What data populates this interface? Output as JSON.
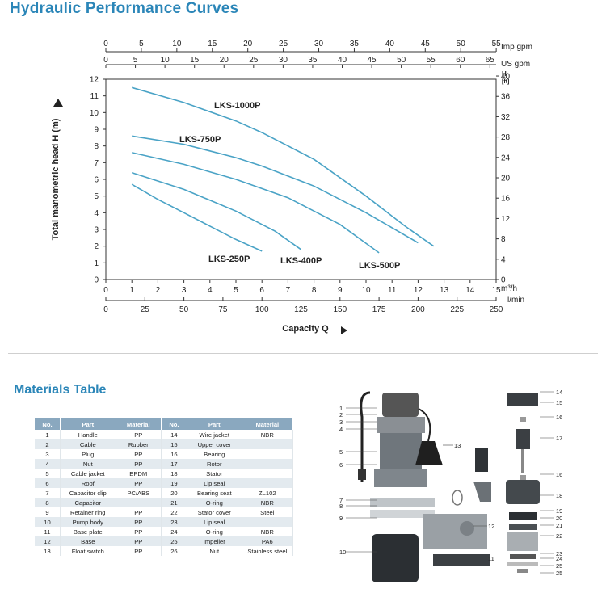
{
  "header": {
    "title": "Hydraulic Performance Curves"
  },
  "chart_data": {
    "type": "line",
    "ylabel": "Total manometric head H (m)",
    "xlabel": "Capacity Q",
    "y_axis_left": {
      "ticks": [
        "0",
        "1",
        "2",
        "3",
        "4",
        "5",
        "6",
        "7",
        "8",
        "9",
        "10",
        "11",
        "12"
      ],
      "ylim": [
        0,
        12
      ]
    },
    "y_axis_right": {
      "unit_top": "H",
      "unit_bottom": "[ft]",
      "ticks": [
        "0",
        "4",
        "8",
        "12",
        "16",
        "20",
        "24",
        "28",
        "32",
        "36",
        "40"
      ]
    },
    "x_axes": [
      {
        "unit": "Imp gpm",
        "ticks": [
          "0",
          "5",
          "10",
          "15",
          "20",
          "25",
          "30",
          "35",
          "40",
          "45",
          "50",
          "55"
        ]
      },
      {
        "unit": "US gpm",
        "ticks": [
          "0",
          "5",
          "10",
          "15",
          "20",
          "25",
          "30",
          "35",
          "40",
          "45",
          "50",
          "55",
          "60",
          "65"
        ]
      },
      {
        "unit": "m³/h",
        "ticks": [
          "0",
          "1",
          "2",
          "3",
          "4",
          "5",
          "6",
          "7",
          "8",
          "9",
          "10",
          "11",
          "12",
          "13",
          "14",
          "15"
        ],
        "xlim": [
          0,
          15
        ]
      },
      {
        "unit": "l/min",
        "ticks": [
          "0",
          "25",
          "50",
          "75",
          "100",
          "125",
          "150",
          "175",
          "200",
          "225",
          "250"
        ]
      }
    ],
    "series": [
      {
        "name": "LKS-1000P",
        "x": [
          1,
          3,
          5,
          6,
          8,
          10,
          11.5,
          12.6
        ],
        "y": [
          11.5,
          10.6,
          9.5,
          8.8,
          7.2,
          5.0,
          3.2,
          2.0
        ]
      },
      {
        "name": "LKS-750P",
        "x": [
          1,
          3,
          5,
          6,
          8,
          10,
          12
        ],
        "y": [
          8.6,
          8.1,
          7.3,
          6.8,
          5.6,
          4.0,
          2.2
        ]
      },
      {
        "name": "LKS-500P",
        "x": [
          1,
          3,
          5,
          7,
          9,
          10.5
        ],
        "y": [
          7.6,
          6.9,
          6.0,
          4.9,
          3.3,
          1.6
        ]
      },
      {
        "name": "LKS-400P",
        "x": [
          1,
          3,
          5,
          6.5,
          7.5
        ],
        "y": [
          6.4,
          5.4,
          4.1,
          2.9,
          1.8
        ]
      },
      {
        "name": "LKS-250P",
        "x": [
          1,
          2,
          3,
          4,
          5,
          6
        ],
        "y": [
          5.7,
          4.8,
          4.0,
          3.2,
          2.4,
          1.7
        ]
      }
    ],
    "grid": false,
    "series_color": "#4aa3c6"
  },
  "materials": {
    "title": "Materials Table",
    "headers": [
      "No.",
      "Part",
      "Material",
      "No.",
      "Part",
      "Material"
    ],
    "rows": [
      [
        "1",
        "Handle",
        "PP",
        "14",
        "Wire jacket",
        "NBR"
      ],
      [
        "2",
        "Cable",
        "Rubber",
        "15",
        "Upper cover",
        ""
      ],
      [
        "3",
        "Plug",
        "PP",
        "16",
        "Bearing",
        ""
      ],
      [
        "4",
        "Nut",
        "PP",
        "17",
        "Rotor",
        ""
      ],
      [
        "5",
        "Cable jacket",
        "EPDM",
        "18",
        "Stator",
        ""
      ],
      [
        "6",
        "Roof",
        "PP",
        "19",
        "Lip seal",
        ""
      ],
      [
        "7",
        "Capacitor clip",
        "PC/ABS",
        "20",
        "Bearing seat",
        "ZL102"
      ],
      [
        "8",
        "Capacitor",
        "",
        "21",
        "O-ring",
        "NBR"
      ],
      [
        "9",
        "Retainer ring",
        "PP",
        "22",
        "Stator cover",
        "Steel"
      ],
      [
        "10",
        "Pump body",
        "PP",
        "23",
        "Lip seal",
        ""
      ],
      [
        "11",
        "Base plate",
        "PP",
        "24",
        "O-ring",
        "NBR"
      ],
      [
        "12",
        "Base",
        "PP",
        "25",
        "Impeller",
        "PA6"
      ],
      [
        "13",
        "Float switch",
        "PP",
        "26",
        "Nut",
        "Stainless steel"
      ]
    ]
  },
  "diagram": {
    "left_labels": [
      "1",
      "2",
      "3",
      "4",
      "5",
      "6",
      "7",
      "8",
      "9",
      "10"
    ],
    "mid_labels": [
      "13",
      "12",
      "11"
    ],
    "right_labels": [
      "14",
      "15",
      "16",
      "17",
      "16",
      "18",
      "19",
      "20",
      "21",
      "22",
      "23",
      "24",
      "25",
      "25"
    ]
  }
}
